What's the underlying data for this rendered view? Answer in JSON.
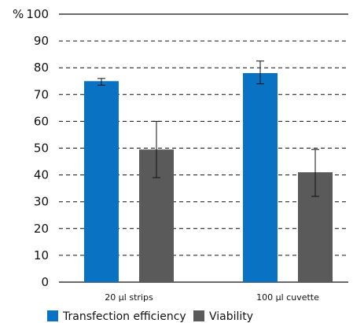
{
  "chart_data": {
    "type": "bar",
    "title": "",
    "xlabel": "",
    "ylabel": "%",
    "ylim": [
      0,
      100
    ],
    "y_ticks": [
      0,
      10,
      20,
      30,
      40,
      50,
      60,
      70,
      80,
      90,
      100
    ],
    "grid": true,
    "grid_style": "dashed",
    "legend_position": "bottom",
    "categories": [
      "20 µl strips",
      "100 µl cuvette"
    ],
    "series": [
      {
        "name": "Transfection efficiency",
        "color": "#0a72c3",
        "values": [
          75,
          78
        ],
        "error_low": [
          73.5,
          74
        ],
        "error_high": [
          76,
          82.5
        ]
      },
      {
        "name": "Viability",
        "color": "#5a5a5a",
        "values": [
          49.5,
          41
        ],
        "error_low": [
          39,
          32
        ],
        "error_high": [
          60,
          49.5
        ]
      }
    ]
  }
}
